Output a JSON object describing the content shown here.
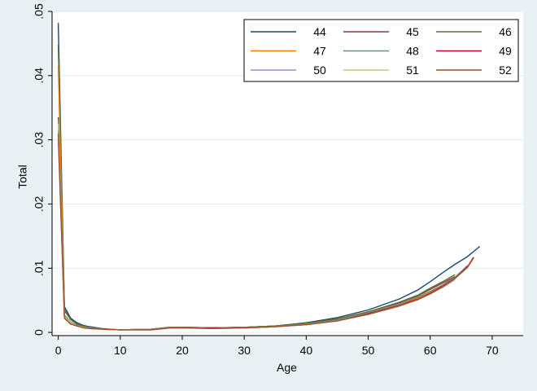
{
  "chart_data": {
    "type": "line",
    "title": "",
    "xlabel": "Age",
    "ylabel": "Total",
    "xlim": [
      -1,
      75
    ],
    "ylim": [
      -0.0005,
      0.05
    ],
    "x_ticks": [
      0,
      10,
      20,
      30,
      40,
      50,
      60,
      70
    ],
    "y_ticks": [
      0,
      0.01,
      0.02,
      0.03,
      0.04,
      0.05
    ],
    "y_tick_labels": [
      "0",
      ".01",
      ".02",
      ".03",
      ".04",
      ".05"
    ],
    "grid": "horizontal",
    "legend_position": "top-right",
    "legend_columns": 3,
    "colors": {
      "background": "#eaf1f4",
      "plot_background": "#ffffff",
      "grid": "#e8eef1",
      "axis": "#000000"
    },
    "series": [
      {
        "name": "44",
        "color": "#1a476f",
        "x": [
          0,
          1,
          2,
          3,
          4,
          5,
          7,
          10,
          15,
          18,
          20,
          25,
          30,
          35,
          40,
          45,
          50,
          55,
          58,
          60,
          62,
          64,
          66,
          68
        ],
        "y": [
          0.0482,
          0.004,
          0.0022,
          0.0015,
          0.0011,
          0.0009,
          0.0006,
          0.0004,
          0.0005,
          0.0008,
          0.0008,
          0.0007,
          0.0008,
          0.001,
          0.0015,
          0.0023,
          0.0035,
          0.0052,
          0.0066,
          0.0079,
          0.0093,
          0.0106,
          0.0118,
          0.0134
        ]
      },
      {
        "name": "45",
        "color": "#90353b",
        "x": [
          0,
          1,
          2,
          3,
          4,
          5,
          7,
          10,
          15,
          18,
          20,
          25,
          30,
          35,
          40,
          45,
          50,
          55,
          58,
          60,
          62,
          64
        ],
        "y": [
          0.0335,
          0.0034,
          0.002,
          0.0013,
          0.001,
          0.0008,
          0.0005,
          0.0004,
          0.0005,
          0.0008,
          0.0008,
          0.0007,
          0.0008,
          0.001,
          0.0014,
          0.0021,
          0.0032,
          0.0046,
          0.0057,
          0.0067,
          0.0077,
          0.0087
        ]
      },
      {
        "name": "46",
        "color": "#55752f",
        "x": [
          0,
          1,
          2,
          3,
          4,
          5,
          7,
          10,
          15,
          18,
          20,
          25,
          30,
          35,
          40,
          45,
          50,
          55,
          58,
          60,
          62,
          64
        ],
        "y": [
          0.0448,
          0.0036,
          0.002,
          0.0013,
          0.001,
          0.0008,
          0.0005,
          0.0004,
          0.0005,
          0.0008,
          0.0008,
          0.0007,
          0.0008,
          0.001,
          0.0014,
          0.0021,
          0.0032,
          0.0047,
          0.0058,
          0.0069,
          0.0079,
          0.009
        ]
      },
      {
        "name": "47",
        "color": "#e37e00",
        "x": [
          0,
          1,
          2,
          3,
          4,
          5,
          7,
          10,
          15,
          18,
          20,
          25,
          30,
          35,
          40,
          45,
          50,
          55,
          58,
          60,
          62,
          64,
          66
        ],
        "y": [
          0.0415,
          0.0025,
          0.0015,
          0.0011,
          0.0008,
          0.0007,
          0.0005,
          0.0004,
          0.0005,
          0.0007,
          0.0007,
          0.0007,
          0.0007,
          0.0009,
          0.0013,
          0.0019,
          0.0029,
          0.0042,
          0.0054,
          0.0063,
          0.0073,
          0.0085,
          0.0102
        ]
      },
      {
        "name": "48",
        "color": "#6e8e84",
        "x": [
          0,
          1,
          2,
          3,
          4,
          5,
          7,
          10,
          15,
          18,
          20,
          25,
          30,
          35,
          40,
          45,
          50,
          55,
          58,
          60,
          62,
          64,
          66
        ],
        "y": [
          0.0332,
          0.0027,
          0.0016,
          0.0011,
          0.0008,
          0.0007,
          0.0005,
          0.0004,
          0.0005,
          0.0007,
          0.0007,
          0.0007,
          0.0007,
          0.0009,
          0.0013,
          0.0019,
          0.003,
          0.0044,
          0.0055,
          0.0064,
          0.0074,
          0.0086,
          0.0104
        ]
      },
      {
        "name": "49",
        "color": "#c10534",
        "x": [
          0,
          1,
          2,
          3,
          4,
          5,
          7,
          10,
          15,
          18,
          20,
          25,
          30,
          35,
          40,
          45,
          50,
          55,
          58,
          60,
          62,
          64,
          66,
          67
        ],
        "y": [
          0.0315,
          0.0023,
          0.0014,
          0.001,
          0.0008,
          0.0006,
          0.0005,
          0.0004,
          0.0004,
          0.0007,
          0.0007,
          0.0007,
          0.0007,
          0.0009,
          0.0012,
          0.0018,
          0.0029,
          0.0042,
          0.0052,
          0.0061,
          0.0072,
          0.0084,
          0.0102,
          0.0117
        ]
      },
      {
        "name": "50",
        "color": "#938dd2",
        "x": [
          0,
          1,
          2,
          3,
          4,
          5,
          7,
          10,
          15,
          18,
          20,
          25,
          30,
          35,
          40,
          45,
          50,
          55,
          58,
          60,
          62,
          64
        ],
        "y": [
          0.03,
          0.0022,
          0.0014,
          0.001,
          0.0008,
          0.0006,
          0.0005,
          0.0004,
          0.0004,
          0.0007,
          0.0007,
          0.0006,
          0.0007,
          0.0009,
          0.0012,
          0.0018,
          0.0028,
          0.0041,
          0.0051,
          0.006,
          0.007,
          0.0082
        ]
      },
      {
        "name": "51",
        "color": "#cac27e",
        "x": [
          0,
          1,
          2,
          3,
          4,
          5,
          7,
          10,
          15,
          18,
          20,
          25,
          30,
          35,
          40,
          45,
          50,
          55,
          58,
          60,
          62,
          64
        ],
        "y": [
          0.0325,
          0.0024,
          0.0015,
          0.001,
          0.0008,
          0.0006,
          0.0005,
          0.0004,
          0.0004,
          0.0007,
          0.0007,
          0.0006,
          0.0007,
          0.0009,
          0.0012,
          0.0018,
          0.0028,
          0.0041,
          0.0051,
          0.006,
          0.0071,
          0.0083
        ]
      },
      {
        "name": "52",
        "color": "#a0522d",
        "x": [
          0,
          1,
          2,
          3,
          4,
          5,
          7,
          10,
          15,
          18,
          20,
          25,
          30,
          35,
          40,
          45,
          50,
          55,
          58,
          60,
          62,
          64,
          66,
          67
        ],
        "y": [
          0.031,
          0.0022,
          0.0013,
          0.001,
          0.0007,
          0.0006,
          0.0005,
          0.0004,
          0.0004,
          0.0007,
          0.0007,
          0.0006,
          0.0007,
          0.0009,
          0.0012,
          0.0018,
          0.0028,
          0.0041,
          0.0051,
          0.006,
          0.0071,
          0.0084,
          0.0101,
          0.0116
        ]
      }
    ]
  }
}
